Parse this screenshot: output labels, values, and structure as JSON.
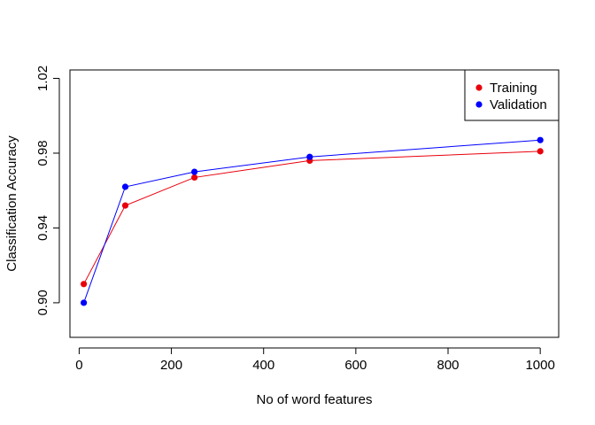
{
  "chart_data": {
    "type": "line",
    "xlabel": "No of word features",
    "ylabel": "Classification Accuracy",
    "x": [
      10,
      100,
      250,
      500,
      1000
    ],
    "series": [
      {
        "name": "Training",
        "color": "#e8000b",
        "values": [
          0.91,
          0.952,
          0.967,
          0.976,
          0.981
        ]
      },
      {
        "name": "Validation",
        "color": "#0000ff",
        "values": [
          0.9,
          0.962,
          0.97,
          0.978,
          0.987
        ]
      }
    ],
    "xlim": [
      -20,
      1040
    ],
    "ylim": [
      0.8815,
      1.0245
    ],
    "xticks": [
      0,
      200,
      400,
      600,
      800,
      1000
    ],
    "yticks": [
      0.9,
      0.94,
      0.98,
      1.02
    ],
    "ytick_labels": [
      "0.90",
      "0.94",
      "0.98",
      "1.02"
    ],
    "grid": false,
    "legend": "top-right",
    "marker": "filled-circle"
  }
}
